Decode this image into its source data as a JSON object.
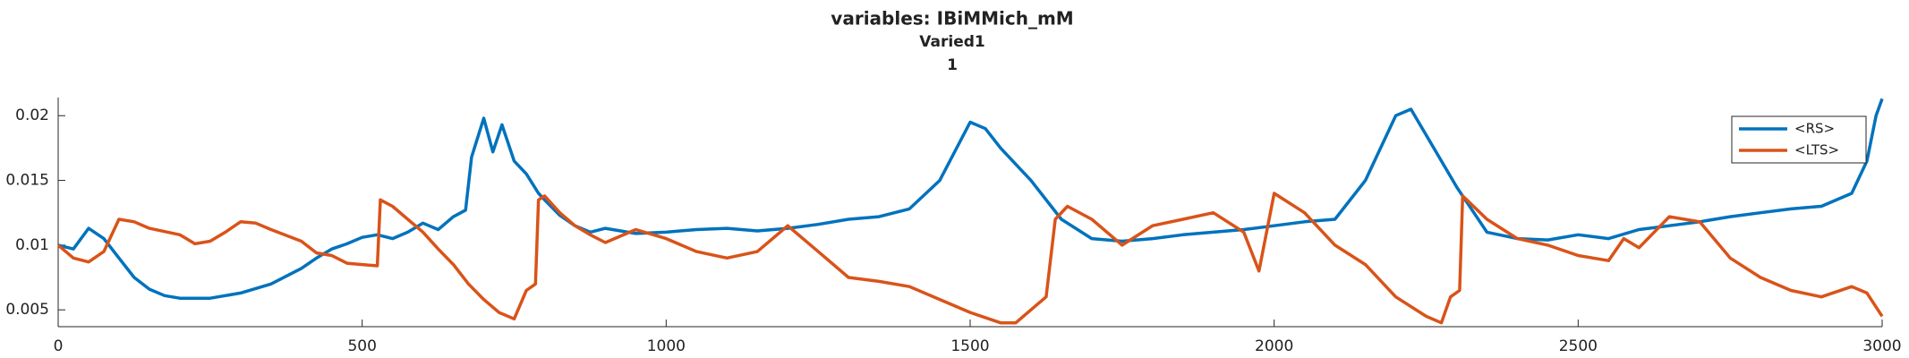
{
  "chart_data": {
    "type": "line",
    "title": "variables: IBiMMich_mM",
    "subtitle": "Varied1",
    "subtitle2": "1",
    "xlim": [
      0,
      3000
    ],
    "xticks": [
      0,
      500,
      1000,
      1500,
      2000,
      2500,
      3000
    ],
    "ylim": [
      0.0037,
      0.0214
    ],
    "yticks": [
      0.005,
      0.01,
      0.015,
      0.02
    ],
    "legend": "top-right",
    "series": [
      {
        "name": "<RS>",
        "color": "#0072bd",
        "x": [
          0,
          25,
          50,
          75,
          100,
          125,
          150,
          175,
          200,
          250,
          300,
          350,
          400,
          425,
          450,
          475,
          500,
          525,
          550,
          575,
          600,
          625,
          650,
          670,
          680,
          700,
          715,
          730,
          750,
          770,
          790,
          800,
          825,
          850,
          875,
          900,
          950,
          1000,
          1050,
          1100,
          1150,
          1200,
          1250,
          1300,
          1350,
          1400,
          1450,
          1500,
          1525,
          1550,
          1600,
          1650,
          1700,
          1750,
          1800,
          1850,
          1900,
          1950,
          2000,
          2050,
          2100,
          2150,
          2200,
          2225,
          2250,
          2300,
          2350,
          2400,
          2450,
          2500,
          2550,
          2600,
          2650,
          2700,
          2750,
          2800,
          2850,
          2900,
          2950,
          2975,
          2990,
          3000
        ],
        "values": [
          0.01,
          0.0097,
          0.0113,
          0.0105,
          0.009,
          0.0075,
          0.0066,
          0.0061,
          0.0059,
          0.0059,
          0.0063,
          0.007,
          0.0082,
          0.009,
          0.0097,
          0.0101,
          0.0106,
          0.0108,
          0.0105,
          0.011,
          0.0117,
          0.0112,
          0.0122,
          0.0127,
          0.0168,
          0.0198,
          0.0172,
          0.0193,
          0.0165,
          0.0155,
          0.014,
          0.0135,
          0.0123,
          0.0115,
          0.011,
          0.0113,
          0.0109,
          0.011,
          0.0112,
          0.0113,
          0.0111,
          0.0113,
          0.0116,
          0.012,
          0.0122,
          0.0128,
          0.015,
          0.0195,
          0.019,
          0.0175,
          0.015,
          0.012,
          0.0105,
          0.0103,
          0.0105,
          0.0108,
          0.011,
          0.0112,
          0.0115,
          0.0118,
          0.012,
          0.015,
          0.02,
          0.0205,
          0.0185,
          0.0145,
          0.011,
          0.0105,
          0.0104,
          0.0108,
          0.0105,
          0.0112,
          0.0115,
          0.0118,
          0.0122,
          0.0125,
          0.0128,
          0.013,
          0.014,
          0.0165,
          0.02,
          0.0213
        ]
      },
      {
        "name": "<LTS>",
        "color": "#d95319",
        "x": [
          0,
          25,
          50,
          75,
          100,
          125,
          150,
          200,
          225,
          250,
          275,
          300,
          325,
          350,
          400,
          425,
          450,
          475,
          500,
          525,
          530,
          550,
          575,
          600,
          625,
          650,
          675,
          700,
          725,
          750,
          770,
          785,
          790,
          800,
          825,
          850,
          875,
          900,
          950,
          1000,
          1050,
          1100,
          1150,
          1200,
          1250,
          1300,
          1350,
          1400,
          1450,
          1500,
          1550,
          1575,
          1600,
          1625,
          1640,
          1660,
          1700,
          1750,
          1800,
          1850,
          1900,
          1950,
          1975,
          2000,
          2050,
          2100,
          2150,
          2200,
          2250,
          2275,
          2290,
          2305,
          2310,
          2350,
          2400,
          2450,
          2500,
          2550,
          2575,
          2600,
          2650,
          2700,
          2750,
          2800,
          2850,
          2900,
          2950,
          2975,
          3000
        ],
        "values": [
          0.01,
          0.009,
          0.0087,
          0.0095,
          0.012,
          0.0118,
          0.0113,
          0.0108,
          0.0101,
          0.0103,
          0.011,
          0.0118,
          0.0117,
          0.0112,
          0.0103,
          0.0094,
          0.0092,
          0.0086,
          0.0085,
          0.0084,
          0.0135,
          0.013,
          0.012,
          0.011,
          0.0097,
          0.0085,
          0.007,
          0.0058,
          0.0048,
          0.0043,
          0.0065,
          0.007,
          0.0135,
          0.0138,
          0.0125,
          0.0115,
          0.0108,
          0.0102,
          0.0112,
          0.0105,
          0.0095,
          0.009,
          0.0095,
          0.0115,
          0.0095,
          0.0075,
          0.0072,
          0.0068,
          0.0058,
          0.0048,
          0.004,
          0.004,
          0.005,
          0.006,
          0.012,
          0.013,
          0.012,
          0.01,
          0.0115,
          0.012,
          0.0125,
          0.011,
          0.008,
          0.014,
          0.0125,
          0.01,
          0.0085,
          0.006,
          0.0045,
          0.004,
          0.006,
          0.0065,
          0.0138,
          0.012,
          0.0105,
          0.01,
          0.0092,
          0.0088,
          0.0105,
          0.0098,
          0.0122,
          0.0118,
          0.009,
          0.0075,
          0.0065,
          0.006,
          0.0068,
          0.0063,
          0.0045
        ]
      }
    ]
  }
}
